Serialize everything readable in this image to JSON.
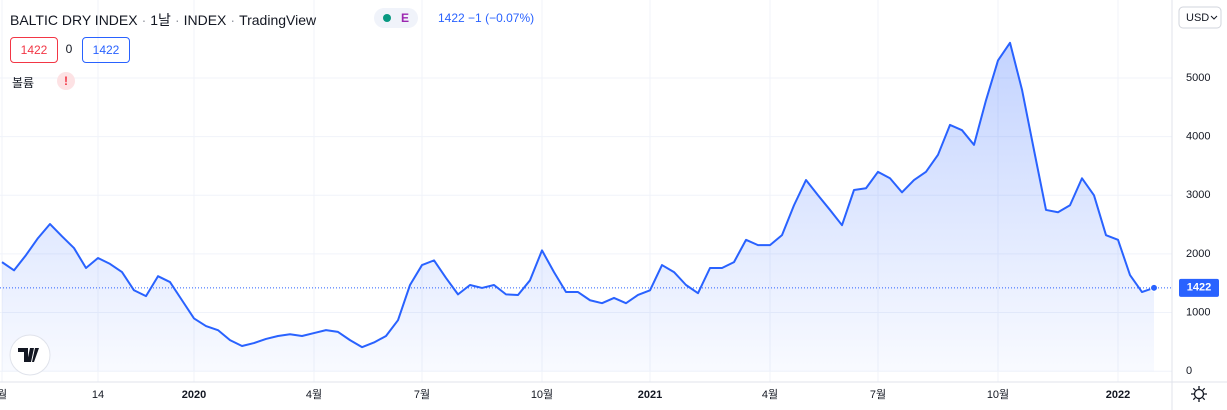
{
  "header": {
    "title_parts": [
      "BALTIC DRY INDEX",
      "1날",
      "INDEX",
      "TradingView"
    ],
    "badge": "E",
    "quote": [
      "1422",
      "−1",
      "(−0.07%)"
    ],
    "boxes": [
      "1422",
      "0",
      "1422"
    ],
    "volume": "볼륨",
    "warning": "!",
    "currency": "USD"
  },
  "chart_data": {
    "type": "area",
    "color": "#2962ff",
    "categories": [
      "월",
      null,
      null,
      null,
      null,
      null,
      null,
      null,
      "14",
      null,
      null,
      null,
      null,
      null,
      null,
      null,
      "2020",
      null,
      null,
      null,
      null,
      null,
      null,
      null,
      null,
      null,
      "4월",
      null,
      null,
      null,
      null,
      null,
      null,
      null,
      null,
      "7월",
      null,
      null,
      null,
      null,
      null,
      null,
      null,
      null,
      null,
      "10월",
      null,
      null,
      null,
      null,
      null,
      null,
      null,
      null,
      "2021",
      null,
      null,
      null,
      null,
      null,
      null,
      null,
      null,
      null,
      "4월",
      null,
      null,
      null,
      null,
      null,
      null,
      null,
      null,
      "7월",
      null,
      null,
      null,
      null,
      null,
      null,
      null,
      null,
      null,
      "10월",
      null,
      null,
      null,
      null,
      null,
      null,
      null,
      null,
      null,
      "2022",
      null,
      null,
      null
    ],
    "values": [
      1860,
      1720,
      1980,
      2270,
      2510,
      2300,
      2100,
      1760,
      1930,
      1830,
      1690,
      1380,
      1280,
      1620,
      1520,
      1210,
      900,
      770,
      700,
      530,
      430,
      480,
      550,
      600,
      630,
      600,
      650,
      700,
      670,
      530,
      410,
      490,
      600,
      870,
      1470,
      1810,
      1890,
      1590,
      1310,
      1470,
      1420,
      1470,
      1310,
      1300,
      1550,
      2060,
      1690,
      1350,
      1350,
      1210,
      1160,
      1250,
      1160,
      1300,
      1380,
      1810,
      1690,
      1470,
      1330,
      1760,
      1760,
      1860,
      2240,
      2150,
      2150,
      2320,
      2830,
      3260,
      3000,
      2750,
      2490,
      3090,
      3120,
      3400,
      3290,
      3050,
      3260,
      3400,
      3690,
      4200,
      4110,
      3860,
      4620,
      5300,
      5600,
      4800,
      3770,
      2750,
      2710,
      2830,
      3290,
      3000,
      2320,
      2240,
      1640,
      1350,
      1422
    ],
    "ylim": [
      -150,
      6330
    ],
    "yticks": [
      0,
      1000,
      2000,
      3000,
      4000,
      5000
    ],
    "grid": true
  }
}
